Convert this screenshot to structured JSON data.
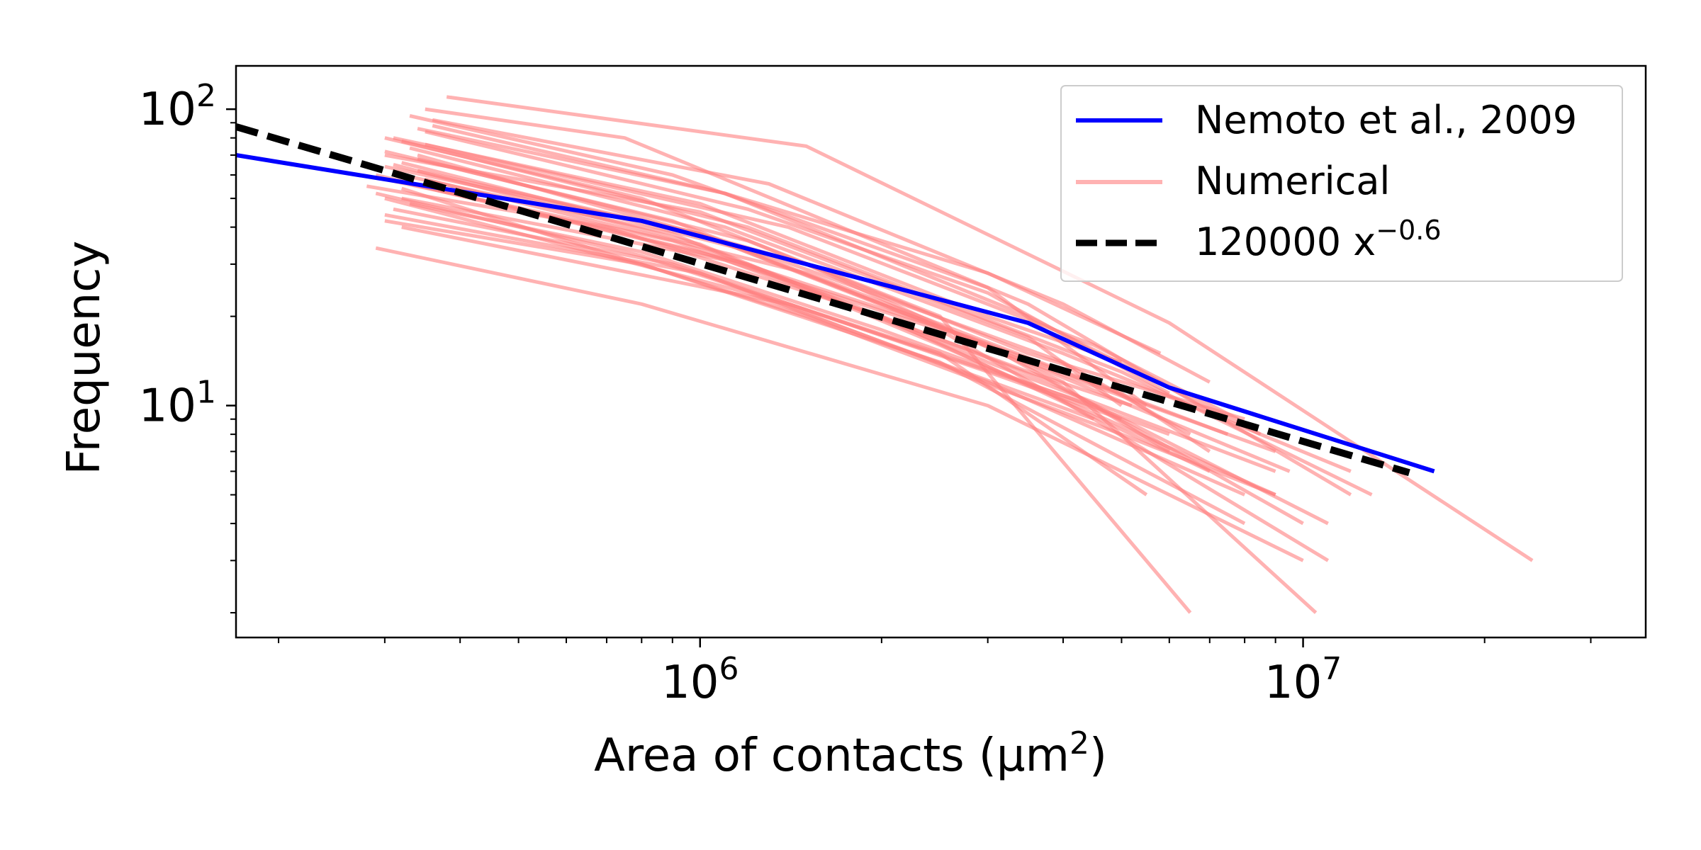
{
  "chart_data": {
    "type": "line",
    "xlabel_main": "Area of contacts (μm",
    "xlabel_sup": "2",
    "xlabel_end": ")",
    "ylabel": "Frequency",
    "xscale": "log",
    "yscale": "log",
    "xlim": [
      170000,
      37000000
    ],
    "ylim": [
      1.65,
      140
    ],
    "x_ticks": [
      {
        "value": 1000000,
        "base": "10",
        "exp": "6"
      },
      {
        "value": 10000000,
        "base": "10",
        "exp": "7"
      }
    ],
    "y_ticks": [
      {
        "value": 10,
        "base": "10",
        "exp": "1"
      },
      {
        "value": 100,
        "base": "10",
        "exp": "2"
      }
    ],
    "legend": {
      "position": "upper right",
      "entries": [
        {
          "label": "Nemoto et al., 2009",
          "color": "#0000ff",
          "style": "solid"
        },
        {
          "label": "Numerical",
          "color": "#ff7f7f",
          "style": "solid"
        },
        {
          "label_main": "120000 x",
          "label_sup": "−0.6",
          "color": "#000000",
          "style": "dashed"
        }
      ]
    },
    "series": [
      {
        "name": "Nemoto et al., 2009",
        "color": "#0000ff",
        "points": [
          [
            170000,
            70
          ],
          [
            800000,
            42
          ],
          [
            1500000,
            30
          ],
          [
            3500000,
            19
          ],
          [
            6000000,
            11.5
          ],
          [
            16500000,
            6
          ]
        ]
      },
      {
        "name": "120000 x^-0.6",
        "color": "#000000",
        "dashed": true,
        "fit": {
          "a": 120000,
          "b": -0.6
        },
        "x_range": [
          170000,
          15000000
        ]
      }
    ],
    "numerical_series": [
      [
        [
          300000,
          80
        ],
        [
          800000,
          50
        ],
        [
          2500000,
          20
        ],
        [
          6500000,
          2
        ]
      ],
      [
        [
          320000,
          60
        ],
        [
          900000,
          38
        ],
        [
          2500000,
          16
        ],
        [
          9000000,
          5
        ]
      ],
      [
        [
          280000,
          55
        ],
        [
          700000,
          40
        ],
        [
          2000000,
          20
        ],
        [
          7000000,
          6
        ]
      ],
      [
        [
          350000,
          100
        ],
        [
          750000,
          80
        ],
        [
          3500000,
          22
        ],
        [
          12000000,
          5
        ]
      ],
      [
        [
          300000,
          42
        ],
        [
          800000,
          30
        ],
        [
          2500000,
          14
        ],
        [
          8000000,
          4
        ]
      ],
      [
        [
          290000,
          34
        ],
        [
          800000,
          22
        ],
        [
          3000000,
          10
        ],
        [
          10000000,
          3
        ]
      ],
      [
        [
          340000,
          70
        ],
        [
          1500000,
          30
        ],
        [
          4000000,
          12
        ],
        [
          10500000,
          2
        ]
      ],
      [
        [
          330000,
          95
        ],
        [
          900000,
          60
        ],
        [
          3000000,
          25
        ],
        [
          5500000,
          10
        ]
      ],
      [
        [
          380000,
          110
        ],
        [
          1500000,
          75
        ],
        [
          6000000,
          19
        ],
        [
          24000000,
          3
        ]
      ],
      [
        [
          310000,
          65
        ],
        [
          1000000,
          35
        ],
        [
          3000000,
          14
        ],
        [
          9000000,
          6
        ]
      ],
      [
        [
          300000,
          50
        ],
        [
          1200000,
          24
        ],
        [
          4500000,
          9
        ],
        [
          11000000,
          3
        ]
      ],
      [
        [
          320000,
          78
        ],
        [
          1200000,
          40
        ],
        [
          5000000,
          13
        ],
        [
          13000000,
          5
        ]
      ],
      [
        [
          350000,
          58
        ],
        [
          1500000,
          28
        ],
        [
          5000000,
          11
        ],
        [
          7000000,
          7
        ]
      ],
      [
        [
          300000,
          72
        ],
        [
          900000,
          42
        ],
        [
          3500000,
          14
        ],
        [
          9000000,
          7
        ]
      ],
      [
        [
          330000,
          48
        ],
        [
          800000,
          33
        ],
        [
          2000000,
          18
        ],
        [
          6000000,
          8
        ]
      ],
      [
        [
          300000,
          44
        ],
        [
          1000000,
          28
        ],
        [
          3000000,
          12
        ],
        [
          8000000,
          5
        ]
      ],
      [
        [
          360000,
          88
        ],
        [
          1100000,
          52
        ],
        [
          3500000,
          20
        ],
        [
          8500000,
          8
        ]
      ],
      [
        [
          320000,
          66
        ],
        [
          1300000,
          32
        ],
        [
          4000000,
          14
        ],
        [
          6500000,
          8
        ]
      ],
      [
        [
          290000,
          52
        ],
        [
          800000,
          32
        ],
        [
          2500000,
          15
        ],
        [
          5500000,
          5
        ]
      ],
      [
        [
          340000,
          62
        ],
        [
          1000000,
          38
        ],
        [
          3000000,
          16
        ],
        [
          10000000,
          4
        ]
      ],
      [
        [
          300000,
          70
        ],
        [
          1000000,
          45
        ],
        [
          3500000,
          17
        ],
        [
          5000000,
          10
        ]
      ],
      [
        [
          320000,
          54
        ],
        [
          1500000,
          20
        ],
        [
          5000000,
          8
        ],
        [
          9000000,
          5
        ]
      ],
      [
        [
          350000,
          84
        ],
        [
          1200000,
          46
        ],
        [
          3000000,
          24
        ],
        [
          6000000,
          11
        ]
      ],
      [
        [
          310000,
          46
        ],
        [
          900000,
          30
        ],
        [
          3000000,
          13
        ],
        [
          5000000,
          9
        ]
      ],
      [
        [
          330000,
          74
        ],
        [
          1100000,
          40
        ],
        [
          4000000,
          15
        ],
        [
          12000000,
          6
        ]
      ],
      [
        [
          290000,
          60
        ],
        [
          1000000,
          33
        ],
        [
          2500000,
          18
        ],
        [
          4500000,
          9
        ]
      ],
      [
        [
          340000,
          68
        ],
        [
          1200000,
          36
        ],
        [
          3500000,
          15
        ],
        [
          8000000,
          9
        ]
      ],
      [
        [
          300000,
          58
        ],
        [
          900000,
          36
        ],
        [
          2800000,
          17
        ],
        [
          7500000,
          8
        ]
      ],
      [
        [
          360000,
          92
        ],
        [
          1300000,
          56
        ],
        [
          4000000,
          22
        ],
        [
          7000000,
          12
        ]
      ],
      [
        [
          320000,
          40
        ],
        [
          1400000,
          22
        ],
        [
          4500000,
          10
        ],
        [
          6000000,
          7
        ]
      ],
      [
        [
          310000,
          80
        ],
        [
          1000000,
          48
        ],
        [
          3000000,
          20
        ],
        [
          5000000,
          14
        ]
      ],
      [
        [
          330000,
          56
        ],
        [
          1200000,
          30
        ],
        [
          3800000,
          12
        ],
        [
          11000000,
          4
        ]
      ],
      [
        [
          300000,
          64
        ],
        [
          1000000,
          38
        ],
        [
          3200000,
          15
        ],
        [
          9500000,
          6
        ]
      ],
      [
        [
          350000,
          76
        ],
        [
          1400000,
          40
        ],
        [
          4500000,
          16
        ],
        [
          7800000,
          9
        ]
      ],
      [
        [
          320000,
          50
        ],
        [
          1100000,
          31
        ],
        [
          3500000,
          13
        ],
        [
          5200000,
          10
        ]
      ],
      [
        [
          340000,
          86
        ],
        [
          1100000,
          52
        ],
        [
          3000000,
          28
        ],
        [
          5800000,
          15
        ]
      ]
    ]
  }
}
